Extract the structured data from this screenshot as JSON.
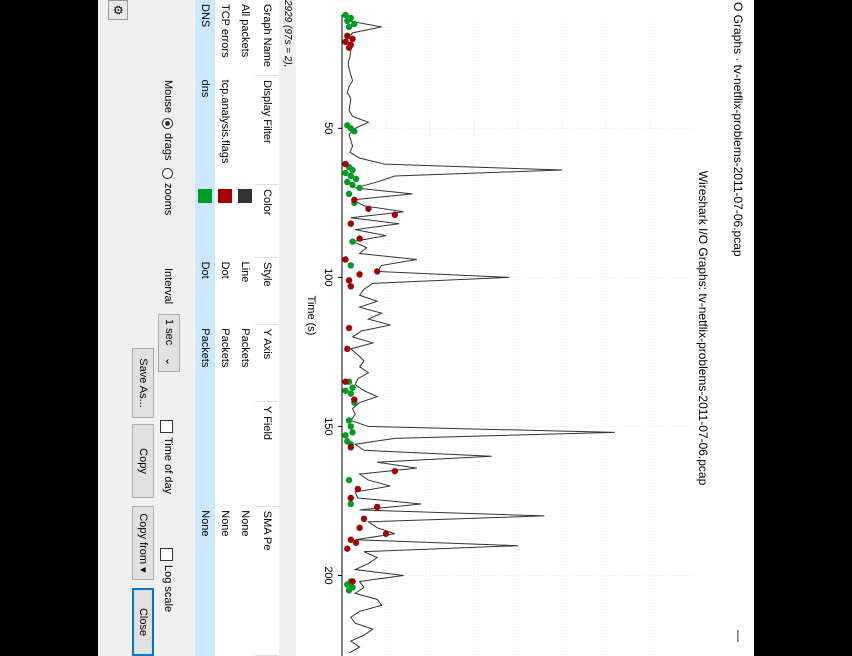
{
  "window": {
    "title": "O Graphs · tv-netflix-problems-2011-07-06.pcap",
    "minimize_glyph": "—"
  },
  "plot": {
    "title": "Wireshark I/O Graphs: tv-netflix-problems-2011-07-06.pcap"
  },
  "chart_data": {
    "type": "line",
    "title": "Wireshark I/O Graphs: tv-netflix-problems-2011-07-06.pcap",
    "xlabel": "Time (s)",
    "ylabel": "",
    "xlim": [
      12,
      227
    ],
    "ylim": [
      0,
      400
    ],
    "xticks": [
      50,
      100,
      150,
      200
    ],
    "grid": true,
    "series": [
      {
        "style": "line",
        "color": "#333333",
        "x": [
          12,
          14,
          16,
          18,
          20,
          22,
          24,
          26,
          28,
          30,
          32,
          34,
          36,
          38,
          40,
          42,
          44,
          46,
          48,
          50,
          52,
          54,
          56,
          58,
          60,
          62,
          64,
          66,
          68,
          70,
          72,
          74,
          76,
          78,
          80,
          82,
          84,
          86,
          88,
          90,
          92,
          94,
          96,
          98,
          100,
          102,
          104,
          106,
          108,
          110,
          112,
          114,
          116,
          118,
          120,
          122,
          124,
          126,
          128,
          130,
          132,
          134,
          136,
          138,
          140,
          142,
          144,
          146,
          148,
          150,
          152,
          154,
          156,
          158,
          160,
          162,
          164,
          166,
          168,
          170,
          172,
          174,
          176,
          178,
          180,
          182,
          184,
          186,
          188,
          190,
          192,
          194,
          196,
          198,
          200,
          202,
          204,
          206,
          208,
          210,
          212,
          214,
          216,
          218,
          220,
          222,
          224,
          226
        ],
        "values": [
          10,
          8,
          45,
          12,
          6,
          8,
          10,
          9,
          7,
          8,
          10,
          12,
          8,
          6,
          10,
          9,
          8,
          12,
          30,
          15,
          8,
          10,
          12,
          9,
          20,
          48,
          250,
          60,
          40,
          15,
          80,
          12,
          25,
          70,
          10,
          65,
          15,
          50,
          12,
          28,
          20,
          85,
          45,
          40,
          190,
          35,
          25,
          20,
          40,
          20,
          45,
          30,
          55,
          22,
          12,
          35,
          10,
          18,
          25,
          20,
          30,
          18,
          15,
          25,
          40,
          20,
          12,
          15,
          10,
          30,
          310,
          60,
          15,
          25,
          170,
          40,
          85,
          20,
          30,
          55,
          15,
          18,
          90,
          20,
          230,
          30,
          40,
          60,
          15,
          200,
          25,
          40,
          30,
          15,
          70,
          20,
          25,
          15,
          40,
          45,
          20,
          10,
          15,
          35,
          25,
          10,
          20,
          8
        ]
      },
      {
        "style": "dot",
        "color": "#009b22",
        "x": [
          12,
          13,
          14,
          15,
          16,
          49,
          50,
          51,
          63,
          64,
          65,
          66,
          67,
          68,
          69,
          70,
          72,
          75,
          88,
          96,
          135,
          137,
          138,
          139,
          142,
          148,
          150,
          152,
          153,
          155,
          156,
          168,
          176,
          202,
          203,
          204,
          205
        ],
        "values": [
          4,
          10,
          6,
          14,
          8,
          6,
          10,
          14,
          8,
          12,
          4,
          10,
          16,
          6,
          12,
          20,
          8,
          14,
          12,
          10,
          8,
          12,
          4,
          10,
          14,
          8,
          10,
          12,
          4,
          6,
          10,
          8,
          10,
          10,
          6,
          12,
          8
        ]
      },
      {
        "style": "dot",
        "color": "#a50000",
        "x": [
          19,
          20,
          21,
          22,
          23,
          62,
          74,
          77,
          79,
          82,
          87,
          94,
          98,
          99,
          101,
          103,
          117,
          124,
          135,
          141,
          157,
          165,
          171,
          174,
          177,
          181,
          184,
          186,
          188,
          189,
          191,
          202
        ],
        "values": [
          6,
          12,
          4,
          10,
          8,
          4,
          14,
          30,
          60,
          10,
          20,
          4,
          40,
          20,
          8,
          10,
          8,
          6,
          4,
          14,
          10,
          60,
          18,
          10,
          40,
          25,
          20,
          50,
          10,
          16,
          6,
          12
        ]
      }
    ]
  },
  "table": {
    "formula": "2929 (97s = 2),",
    "columns": [
      "Graph Name",
      "Display Filter",
      "Color",
      "Style",
      "Y Axis",
      "Y Field",
      "SMA Pe"
    ],
    "rows": [
      {
        "name": "All packets",
        "filter": "",
        "color": "#333333",
        "style": "Line",
        "y_axis": "Packets",
        "y_field": "",
        "sma": "None",
        "selected": false
      },
      {
        "name": "TCP errors",
        "filter": "tcp.analysis.flags",
        "color": "#a50000",
        "style": "Dot",
        "y_axis": "Packets",
        "y_field": "",
        "sma": "None",
        "selected": false
      },
      {
        "name": "DNS",
        "filter": "dns",
        "color": "#009b22",
        "style": "Dot",
        "y_axis": "Packets",
        "y_field": "",
        "sma": "None",
        "selected": true
      }
    ]
  },
  "controls": {
    "mouse_label": "Mouse",
    "drags_label": "drags",
    "zooms_label": "zooms",
    "mouse_mode": "drags",
    "interval_label": "Interval",
    "interval_value": "1 sec",
    "time_of_day_label": "Time of day",
    "log_scale_label": "Log scale",
    "save_as_label": "Save As...",
    "copy_label": "Copy",
    "copy_from_label": "Copy from ▾",
    "close_label": "Close"
  }
}
